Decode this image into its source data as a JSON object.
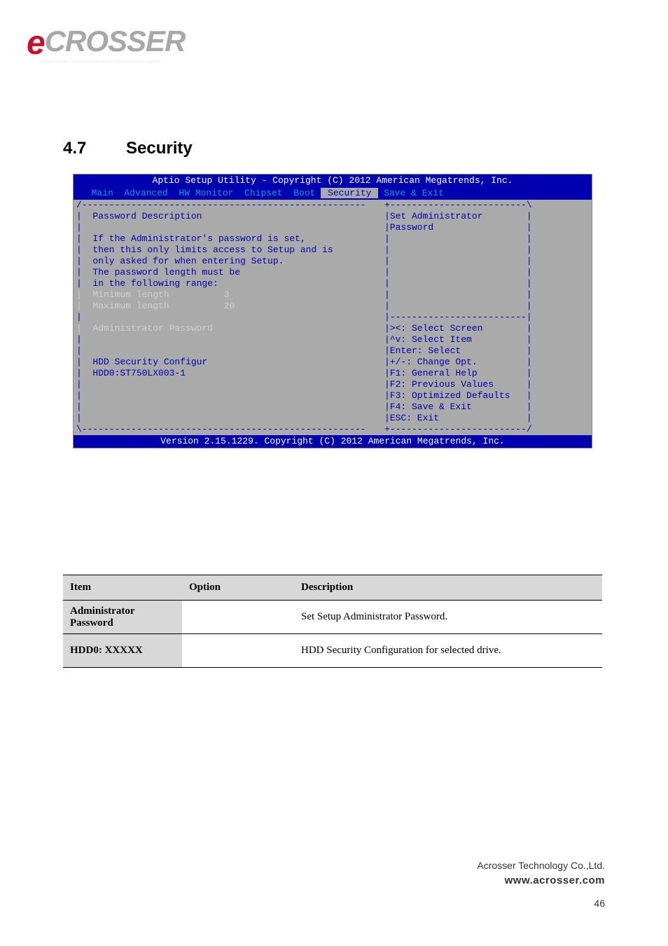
{
  "logo": {
    "e": "e",
    "rest": "CROSSER",
    "shadow": "────────"
  },
  "section": {
    "num": "4.7",
    "title": "Security"
  },
  "bios": {
    "header": "Aptio Setup Utility - Copyright (C) 2012 American Megatrends, Inc.",
    "tabs": {
      "pre": "  Main  Advanced  HW Monitor  Chipset  Boot ",
      "active": " Security ",
      "post": " Save & Exit"
    },
    "lines": {
      "topL": "/----------------------------------------------------",
      "topR": "+-------------------------\\",
      "l1L": "|  Password Description                              ",
      "l1R": "|Set Administrator        |",
      "l2L": "|                                                    ",
      "l2R": "|Password                 |",
      "l3L": "|  If the Administrator's password is set,           ",
      "l3R": "|                         |",
      "l4L": "|  then this only limits access to Setup and is      ",
      "l4R": "|                         |",
      "l5L": "|  only asked for when entering Setup.               ",
      "l5R": "|                         |",
      "l6L": "|  The password length must be                       ",
      "l6R": "|                         |",
      "l7L": "|  in the following range:                           ",
      "l7R": "|                         |",
      "l8L": "|  Minimum length          3                         ",
      "l8R": "|                         |",
      "l9L": "|  Maximum length          20                        ",
      "l9R": "|                         |",
      "l10L": "|                                                    ",
      "l10R": "|-------------------------|",
      "l11L": "|  Administrator Password                            ",
      "l11R": "|><: Select Screen        |",
      "l12L": "|                                                    ",
      "l12R": "|^v: Select Item          |",
      "l13L": "|                                                    ",
      "l13R": "|Enter: Select            |",
      "l14L": "|  HDD Security Configur                             ",
      "l14R": "|+/-: Change Opt.         |",
      "l15L": "|  HDD0:ST750LX003-1                                 ",
      "l15R": "|F1: General Help         |",
      "l16L": "|                                                    ",
      "l16R": "|F2: Previous Values      |",
      "l17L": "|                                                    ",
      "l17R": "|F3: Optimized Defaults   |",
      "l18L": "|                                                    ",
      "l18R": "|F4: Save & Exit          |",
      "l19L": "|                                                    ",
      "l19R": "|ESC: Exit                |",
      "botL": "\\----------------------------------------------------",
      "botR": "+-------------------------/"
    },
    "footer": "Version 2.15.1229. Copyright (C) 2012 American Megatrends, Inc."
  },
  "table": {
    "headers": [
      "Item",
      "Option",
      "Description"
    ],
    "rows": [
      {
        "item": "Administrator Password",
        "option": "",
        "desc": "Set Setup Administrator Password."
      },
      {
        "item": "HDD0: XXXXX",
        "option": "",
        "desc": "HDD Security Configuration for selected drive."
      }
    ]
  },
  "footer": {
    "company": "Acrosser Technology Co.,Ltd.",
    "url": "www.acrosser.com",
    "page": "46"
  },
  "colors": {
    "bios_header_bg": "#0000b0",
    "bios_body_bg": "#aaaaaa",
    "bios_blue_text": "#0000b0",
    "bios_cyan_text": "#02a0c8",
    "bios_grey_text": "#d0d0d0",
    "table_header_bg": "#d8d8d8",
    "logo_red": "#c8102e",
    "logo_grey": "#a8a8a8"
  }
}
